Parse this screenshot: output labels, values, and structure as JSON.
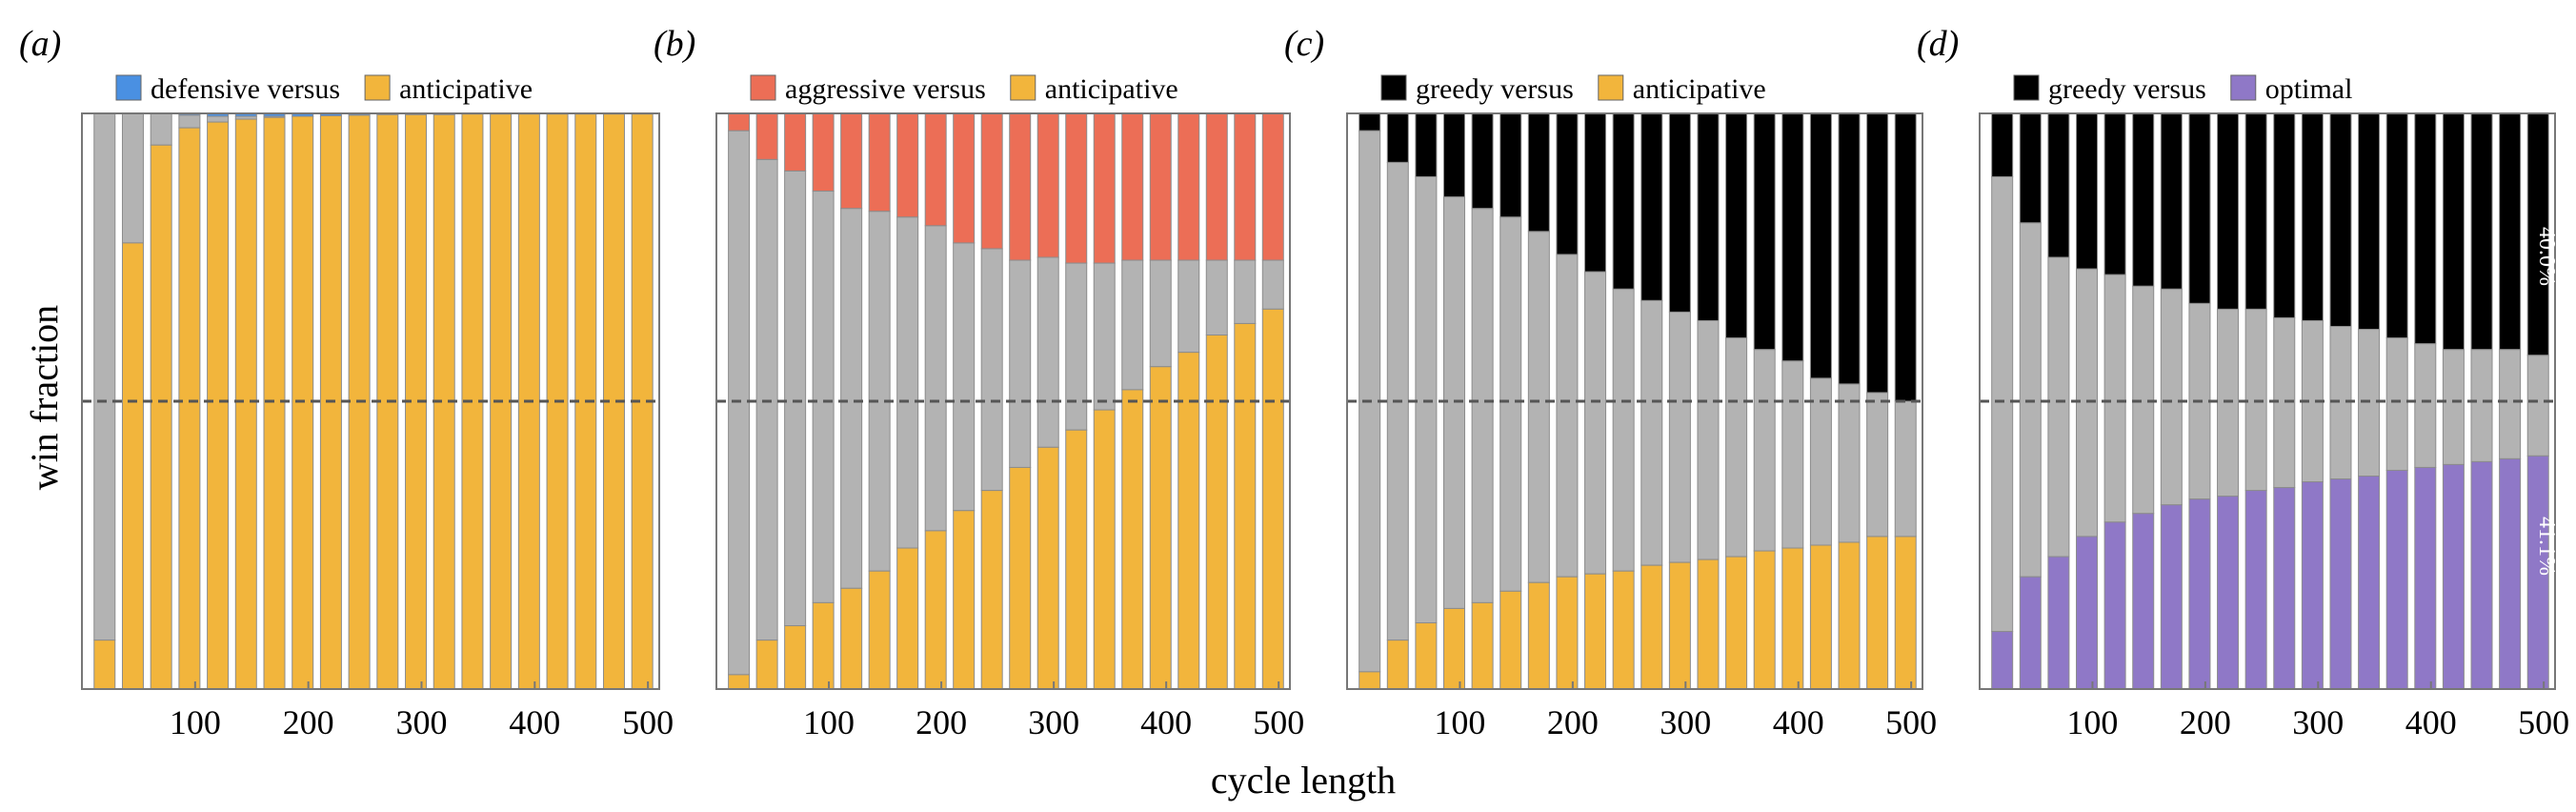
{
  "figure": {
    "xlabel": "cycle length",
    "ylabel": "win fraction"
  },
  "chart_data": [
    {
      "type": "bar",
      "stacked": true,
      "panel": "(a)",
      "legend": [
        {
          "label": "defensive versus",
          "color": "#4a90e2"
        },
        {
          "label": "anticipative",
          "color": "#f2b53c"
        }
      ],
      "tie_color": "#b3b3b3",
      "x": [
        20,
        45,
        70,
        95,
        120,
        145,
        170,
        195,
        220,
        245,
        270,
        295,
        320,
        345,
        370,
        395,
        420,
        445,
        470,
        495
      ],
      "bottom_values": [
        0.085,
        0.775,
        0.945,
        0.975,
        0.985,
        0.99,
        0.993,
        0.995,
        0.996,
        0.997,
        0.998,
        0.998,
        0.998,
        0.999,
        0.999,
        0.999,
        0.999,
        0.999,
        0.999,
        0.999
      ],
      "top_values": [
        0,
        0,
        0,
        0.003,
        0.005,
        0.005,
        0.005,
        0.005,
        0.004,
        0.003,
        0.002,
        0.002,
        0.002,
        0.001,
        0.001,
        0.001,
        0.001,
        0.001,
        0.001,
        0.001
      ],
      "xticks": [
        100,
        200,
        300,
        400,
        500
      ],
      "xlim": [
        0,
        510
      ],
      "ylim": [
        0,
        1
      ],
      "reference_line": 0.5
    },
    {
      "type": "bar",
      "stacked": true,
      "panel": "(b)",
      "legend": [
        {
          "label": "aggressive versus",
          "color": "#ec6e56"
        },
        {
          "label": "anticipative",
          "color": "#f2b53c"
        }
      ],
      "tie_color": "#b3b3b3",
      "x": [
        20,
        45,
        70,
        95,
        120,
        145,
        170,
        195,
        220,
        245,
        270,
        295,
        320,
        345,
        370,
        395,
        420,
        445,
        470,
        495
      ],
      "bottom_values": [
        0.025,
        0.085,
        0.11,
        0.15,
        0.175,
        0.205,
        0.245,
        0.275,
        0.31,
        0.345,
        0.385,
        0.42,
        0.45,
        0.485,
        0.52,
        0.56,
        0.585,
        0.615,
        0.635,
        0.66
      ],
      "top_values": [
        0.03,
        0.08,
        0.1,
        0.135,
        0.165,
        0.17,
        0.18,
        0.195,
        0.225,
        0.235,
        0.255,
        0.25,
        0.26,
        0.26,
        0.255,
        0.255,
        0.255,
        0.255,
        0.255,
        0.255
      ],
      "xticks": [
        100,
        200,
        300,
        400,
        500
      ],
      "xlim": [
        0,
        510
      ],
      "ylim": [
        0,
        1
      ],
      "reference_line": 0.5
    },
    {
      "type": "bar",
      "stacked": true,
      "panel": "(c)",
      "legend": [
        {
          "label": "greedy versus",
          "color": "#000000"
        },
        {
          "label": "anticipative",
          "color": "#f2b53c"
        }
      ],
      "tie_color": "#b3b3b3",
      "x": [
        20,
        45,
        70,
        95,
        120,
        145,
        170,
        195,
        220,
        245,
        270,
        295,
        320,
        345,
        370,
        395,
        420,
        445,
        470,
        495
      ],
      "bottom_values": [
        0.03,
        0.085,
        0.115,
        0.14,
        0.15,
        0.17,
        0.185,
        0.195,
        0.2,
        0.205,
        0.215,
        0.22,
        0.225,
        0.23,
        0.24,
        0.245,
        0.25,
        0.255,
        0.265,
        0.265
      ],
      "top_values": [
        0.03,
        0.085,
        0.11,
        0.145,
        0.165,
        0.18,
        0.205,
        0.245,
        0.275,
        0.305,
        0.325,
        0.345,
        0.36,
        0.39,
        0.41,
        0.43,
        0.46,
        0.47,
        0.485,
        0.5
      ],
      "xticks": [
        100,
        200,
        300,
        400,
        500
      ],
      "xlim": [
        0,
        510
      ],
      "ylim": [
        0,
        1
      ],
      "reference_line": 0.5
    },
    {
      "type": "bar",
      "stacked": true,
      "panel": "(d)",
      "legend": [
        {
          "label": "greedy versus",
          "color": "#000000"
        },
        {
          "label": "optimal",
          "color": "#8f78c7"
        }
      ],
      "tie_color": "#b3b3b3",
      "x": [
        20,
        45,
        70,
        95,
        120,
        145,
        170,
        195,
        220,
        245,
        270,
        295,
        320,
        345,
        370,
        395,
        420,
        445,
        470,
        495
      ],
      "bottom_values": [
        0.1,
        0.195,
        0.23,
        0.265,
        0.29,
        0.305,
        0.32,
        0.33,
        0.335,
        0.345,
        0.35,
        0.36,
        0.365,
        0.37,
        0.38,
        0.385,
        0.39,
        0.395,
        0.4,
        0.405
      ],
      "top_values": [
        0.11,
        0.19,
        0.25,
        0.27,
        0.28,
        0.3,
        0.305,
        0.33,
        0.34,
        0.34,
        0.355,
        0.36,
        0.37,
        0.375,
        0.39,
        0.4,
        0.41,
        0.41,
        0.41,
        0.42
      ],
      "xticks": [
        100,
        200,
        300,
        400,
        500
      ],
      "xlim": [
        0,
        510
      ],
      "ylim": [
        0,
        1
      ],
      "reference_line": 0.5,
      "annotations": [
        {
          "text": "40.0%",
          "position": "top-right"
        },
        {
          "text": "41.1%",
          "position": "bottom-right"
        }
      ]
    }
  ]
}
